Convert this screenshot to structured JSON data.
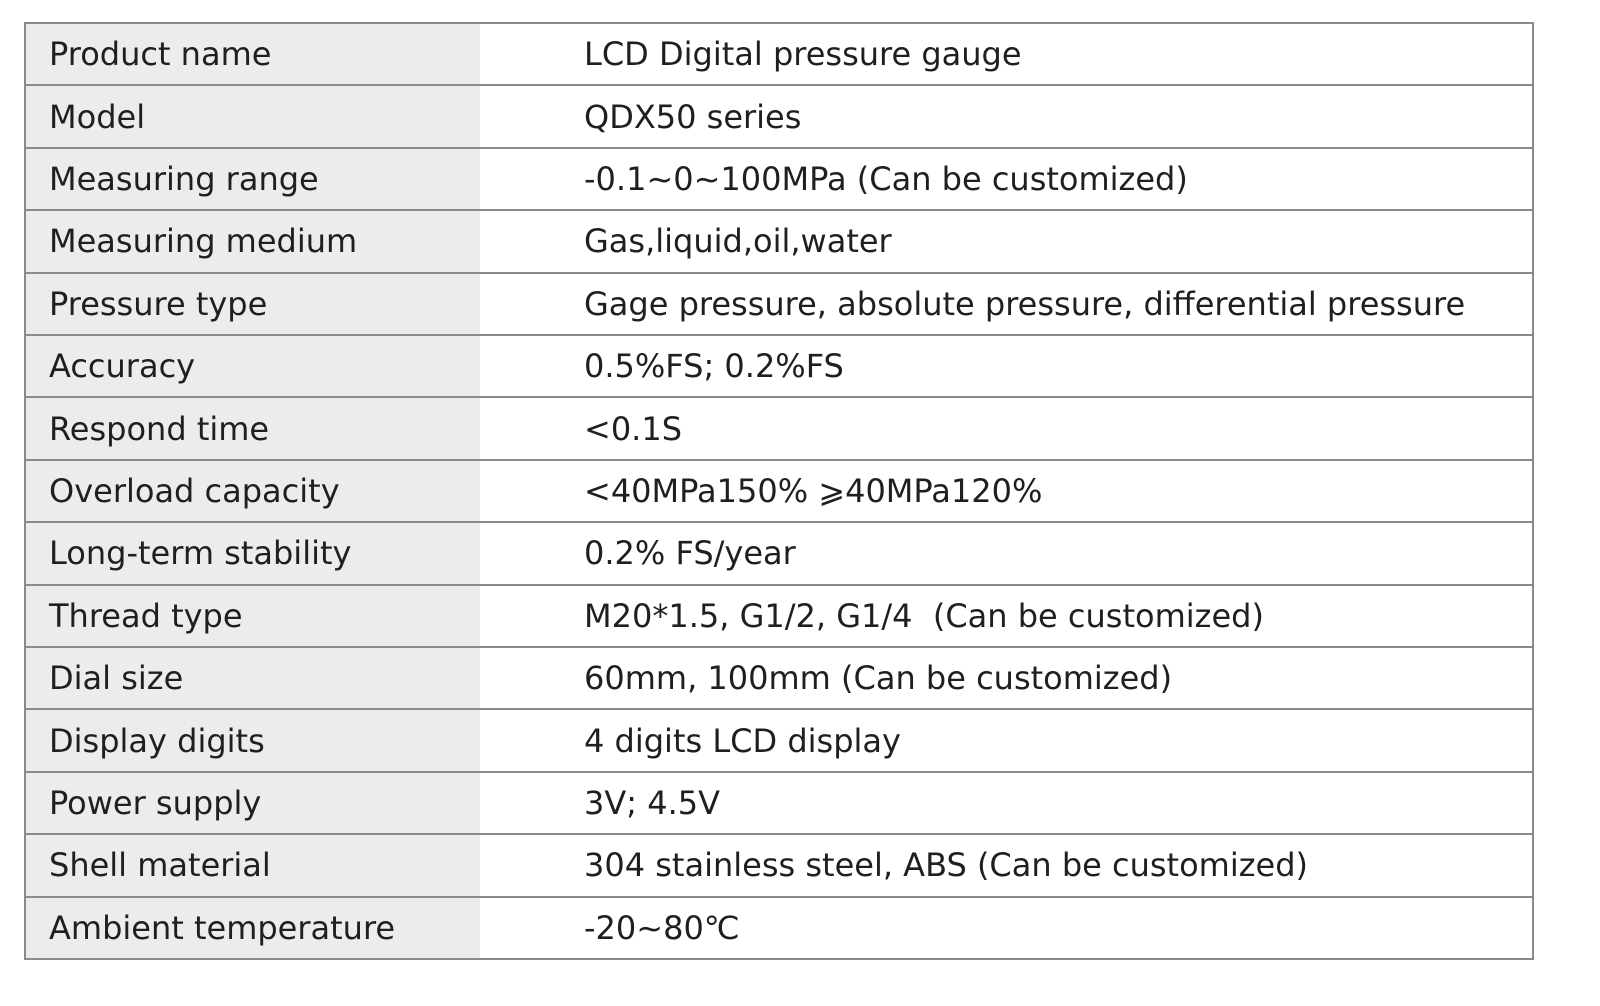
{
  "table": {
    "rows": [
      {
        "label": "Product name",
        "value": "LCD Digital pressure gauge"
      },
      {
        "label": "Model",
        "value": "QDX50 series"
      },
      {
        "label": "Measuring range",
        "value": "-0.1~0~100MPa (Can be customized)"
      },
      {
        "label": "Measuring medium",
        "value": "Gas,liquid,oil,water"
      },
      {
        "label": "Pressure type",
        "value": "Gage pressure, absolute pressure, differential pressure"
      },
      {
        "label": "Accuracy",
        "value": "0.5%FS; 0.2%FS"
      },
      {
        "label": "Respond time",
        "value": "<0.1S"
      },
      {
        "label": "Overload capacity",
        "value": "<40MPa150% ⩾40MPa120%"
      },
      {
        "label": "Long-term stability",
        "value": "0.2% FS/year"
      },
      {
        "label": "Thread type",
        "value": "M20*1.5, G1/2, G1/4  (Can be customized)"
      },
      {
        "label": "Dial size",
        "value": "60mm, 100mm (Can be customized)"
      },
      {
        "label": "Display digits",
        "value": "4 digits LCD display"
      },
      {
        "label": "Power supply",
        "value": "3V; 4.5V"
      },
      {
        "label": "Shell material",
        "value": "304 stainless steel, ABS (Can be customized)"
      },
      {
        "label": "Ambient temperature",
        "value": "-20~80℃"
      }
    ]
  }
}
